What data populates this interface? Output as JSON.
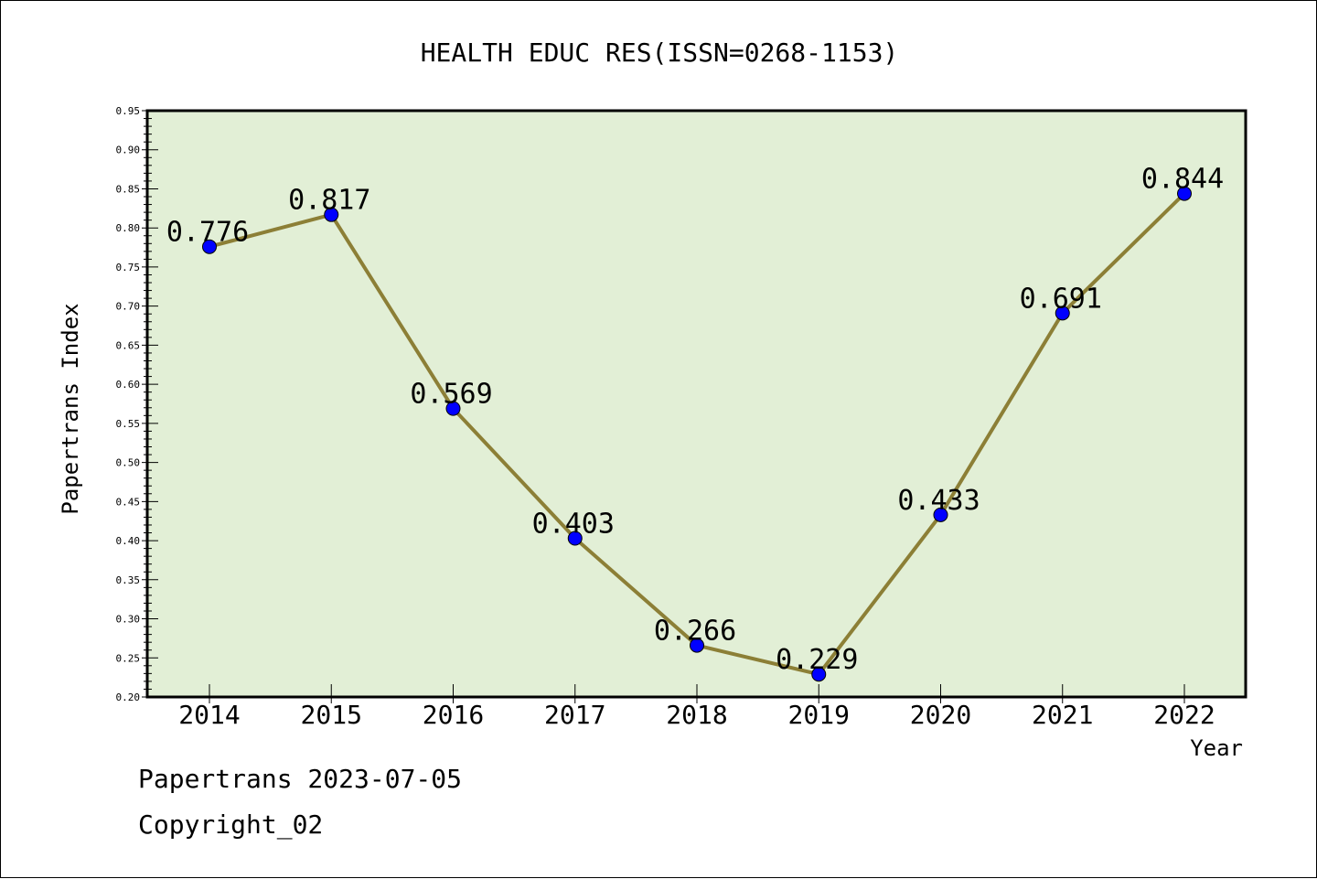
{
  "chart_data": {
    "type": "line",
    "title": "HEALTH EDUC RES(ISSN=0268-1153)",
    "xlabel": "Year",
    "ylabel": "Papertrans Index",
    "categories": [
      "2014",
      "2015",
      "2016",
      "2017",
      "2018",
      "2019",
      "2020",
      "2021",
      "2022"
    ],
    "series": [
      {
        "values": [
          0.776,
          0.817,
          0.569,
          0.403,
          0.266,
          0.229,
          0.433,
          0.691,
          0.844
        ]
      }
    ],
    "data_labels": [
      "0.776",
      "0.817",
      "0.569",
      "0.403",
      "0.266",
      "0.229",
      "0.433",
      "0.691",
      "0.844"
    ],
    "ylim": [
      0.2,
      0.95
    ],
    "yticks": [
      "0.20",
      "0.25",
      "0.30",
      "0.35",
      "0.40",
      "0.45",
      "0.50",
      "0.55",
      "0.60",
      "0.65",
      "0.70",
      "0.75",
      "0.80",
      "0.85",
      "0.90",
      "0.95"
    ],
    "grid": false,
    "legend": "none",
    "colors": {
      "plot_background": "#e2efd6",
      "line": "#8c7f36",
      "marker": "#0000ff",
      "axis": "#000000"
    }
  },
  "footer": {
    "date_line": "Papertrans 2023-07-05",
    "copyright": "Copyright_02"
  }
}
